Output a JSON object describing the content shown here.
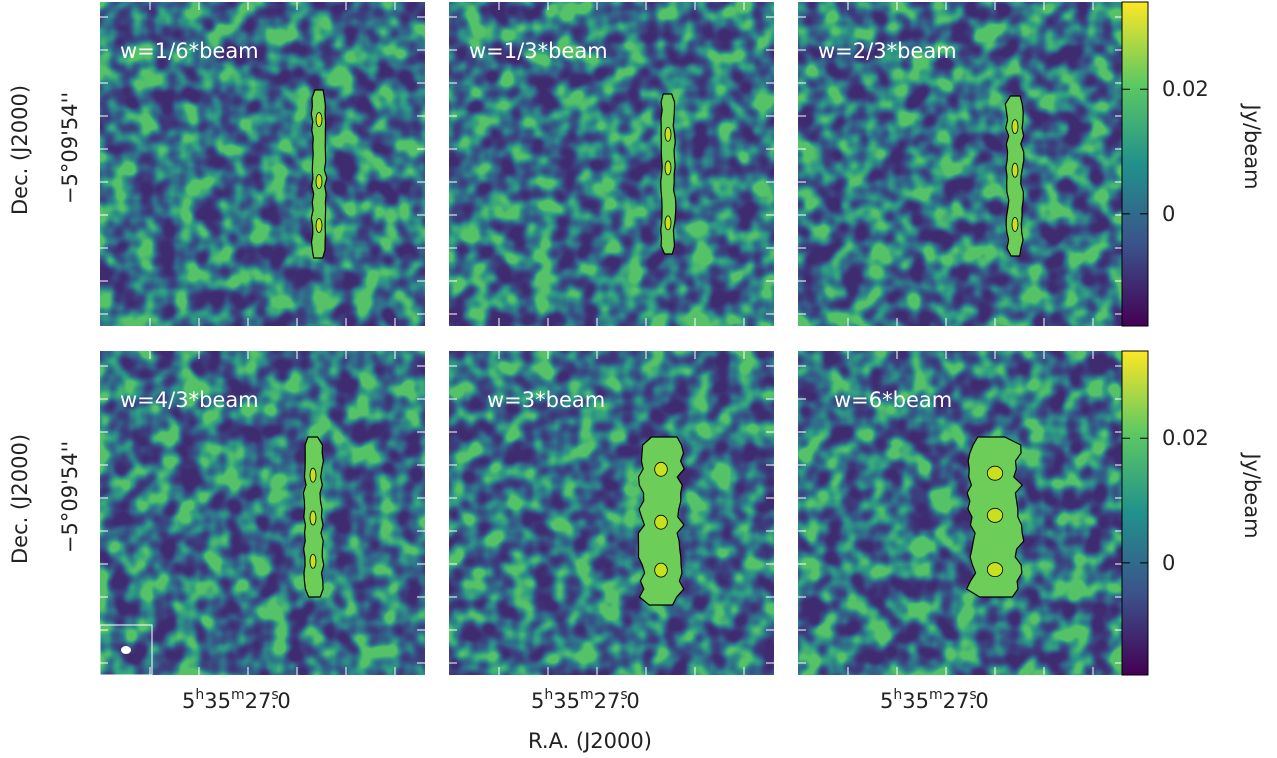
{
  "panels": [
    {
      "label": "w=1/6*beam"
    },
    {
      "label": "w=1/3*beam"
    },
    {
      "label": "w=2/3*beam"
    },
    {
      "label": "w=4/3*beam"
    },
    {
      "label": "w=3*beam"
    },
    {
      "label": "w=6*beam"
    }
  ],
  "y_axis": {
    "label": "Dec. (J2000)",
    "tick_label": "−5°09'54''"
  },
  "x_axis": {
    "label": "R.A. (J2000)",
    "tick_label_parts": [
      "5",
      "h",
      "35",
      "m",
      "27",
      "s",
      ".0"
    ]
  },
  "colorbar": {
    "label": "Jy/beam",
    "range": [
      -0.018,
      0.034
    ],
    "ticks": [
      0,
      0.02
    ],
    "colors": [
      "#440154",
      "#3b528b",
      "#21918c",
      "#5ec962",
      "#fde725"
    ]
  }
}
